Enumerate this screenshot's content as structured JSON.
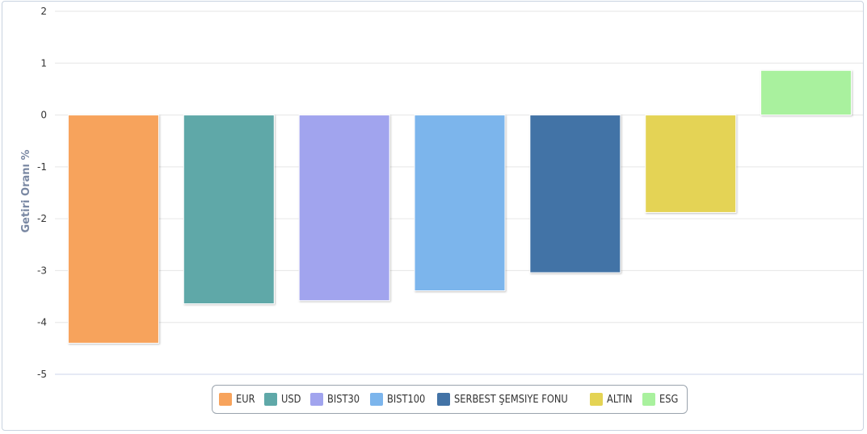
{
  "chart_data": {
    "type": "bar",
    "categories": [
      "EUR",
      "USD",
      "BIST30",
      "BIST100",
      "SERBEST ŞEMSIYE FONU",
      "ALTIN",
      "ESG"
    ],
    "values": [
      -4.4,
      -3.64,
      -3.58,
      -3.39,
      -3.04,
      -1.88,
      0.86
    ],
    "colors": [
      "#f7a35c",
      "#5fa8a8",
      "#a1a4ee",
      "#7cb5ec",
      "#4373a6",
      "#e4d354",
      "#a9f19e"
    ],
    "ylabel": "Getiri Oranı %",
    "ylim": [
      -5,
      2
    ],
    "yticks": [
      "2",
      "1",
      "0",
      "-1",
      "-2",
      "-3",
      "-4",
      "-5"
    ],
    "grid": true,
    "legend_position": "bottom-center"
  },
  "legend": {
    "items": [
      {
        "label": "EUR",
        "color": "#f7a35c"
      },
      {
        "label": "USD",
        "color": "#5fa8a8"
      },
      {
        "label": "BIST30",
        "color": "#a1a4ee"
      },
      {
        "label": "BIST100",
        "color": "#7cb5ec"
      },
      {
        "label": "SERBEST ŞEMSIYE FONU",
        "color": "#4373a6"
      },
      {
        "label": "ALTIN",
        "color": "#e4d354"
      },
      {
        "label": "ESG",
        "color": "#a9f19e"
      }
    ]
  }
}
